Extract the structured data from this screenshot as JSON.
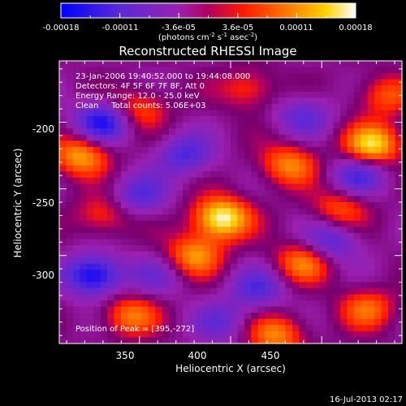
{
  "chart_data": {
    "type": "heatmap",
    "title": "Reconstructed RHESSI Image",
    "xlabel": "Heliocentric X (arcsec)",
    "ylabel": "Heliocentric Y (arcsec)",
    "xlim": [
      306,
      494
    ],
    "ylim": [
      -366,
      -154
    ],
    "xticks": [
      350,
      400,
      450
    ],
    "yticks": [
      -200,
      -250,
      -300
    ],
    "colorbar": {
      "ticks": [
        "-0.00018",
        "-0.00011",
        "-3.6e-05",
        "3.6e-05",
        "0.00011",
        "0.00018"
      ],
      "label_main": "(photons cm",
      "label_exp1": "-2",
      "label_mid": " s",
      "label_exp2": "-1",
      "label_mid2": " asec",
      "label_exp3": "-2",
      "label_end": ")",
      "vmin": -0.00018,
      "vmax": 0.00018
    },
    "annotations": [
      "23-Jan-2006 19:40:52.000 to 19:44:08.000",
      "Detectors: 4F 5F 6F 7F 8F, Att 0",
      "Energy Range: 12.0 - 25.0 keV",
      "Clean     Total counts: 5.06E+03"
    ],
    "peak_text": "Position of Peak = [395,-272]",
    "peak": [
      395,
      -272
    ],
    "sources": [
      {
        "x": 395,
        "y": -272,
        "v": 1.0
      },
      {
        "x": 478,
        "y": -217,
        "v": 0.85
      },
      {
        "x": 318,
        "y": -225,
        "v": 0.7
      },
      {
        "x": 432,
        "y": -232,
        "v": 0.6
      },
      {
        "x": 380,
        "y": -300,
        "v": 0.65
      },
      {
        "x": 440,
        "y": -305,
        "v": 0.6
      },
      {
        "x": 460,
        "y": -265,
        "v": 0.45
      },
      {
        "x": 345,
        "y": -345,
        "v": 0.55
      },
      {
        "x": 425,
        "y": -360,
        "v": 0.6
      },
      {
        "x": 475,
        "y": -340,
        "v": 0.5
      },
      {
        "x": 410,
        "y": -175,
        "v": 0.4
      },
      {
        "x": 350,
        "y": -190,
        "v": 0.45
      },
      {
        "x": 485,
        "y": -180,
        "v": 0.45
      },
      {
        "x": 330,
        "y": -270,
        "v": 0.4
      },
      {
        "x": 330,
        "y": -200,
        "v": -0.7
      },
      {
        "x": 375,
        "y": -225,
        "v": -0.5
      },
      {
        "x": 325,
        "y": -315,
        "v": -0.8
      },
      {
        "x": 350,
        "y": -255,
        "v": -0.45
      },
      {
        "x": 415,
        "y": -325,
        "v": -0.45
      },
      {
        "x": 455,
        "y": -290,
        "v": -0.5
      },
      {
        "x": 470,
        "y": -240,
        "v": -0.5
      },
      {
        "x": 440,
        "y": -195,
        "v": -0.4
      },
      {
        "x": 395,
        "y": -350,
        "v": -0.35
      },
      {
        "x": 360,
        "y": -315,
        "v": -0.3
      }
    ]
  },
  "footer_timestamp": "16-Jul-2013 02:17"
}
